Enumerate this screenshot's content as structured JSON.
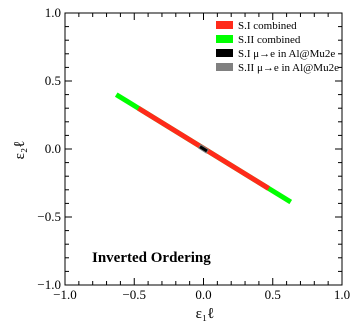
{
  "chart_data": {
    "type": "line",
    "title": "",
    "xlabel": "ε₁ℓ",
    "ylabel": "ε₂ℓ",
    "xlim": [
      -1.0,
      1.0
    ],
    "ylim": [
      -1.0,
      1.0
    ],
    "xticks": [
      "−1.0",
      "−0.5",
      "0.0",
      "0.5",
      "1.0"
    ],
    "yticks": [
      "−1.0",
      "−0.5",
      "0.0",
      "0.5",
      "1.0"
    ],
    "xtick_values": [
      -1.0,
      -0.5,
      0.0,
      0.5,
      1.0
    ],
    "ytick_values": [
      -1.0,
      -0.5,
      0.0,
      0.5,
      1.0
    ],
    "grid": false,
    "legend_position": "top-right",
    "annotation": "Inverted Ordering",
    "series": [
      {
        "name": "S.II combined",
        "color": "#00ff00",
        "x": [
          -0.63,
          0.63
        ],
        "y": [
          0.4,
          -0.39
        ]
      },
      {
        "name": "S.I  combined",
        "color": "#ff2a1a",
        "x": [
          -0.47,
          0.47
        ],
        "y": [
          0.3,
          -0.29
        ]
      },
      {
        "name": "S.II  μ→e in Al@Mu2e",
        "color": "#808080",
        "x": [
          -0.03,
          0.03
        ],
        "y": [
          0.021,
          -0.019
        ]
      },
      {
        "name": "S.I  μ→e in Al@Mu2e",
        "color": "#000000",
        "x": [
          -0.025,
          0.025
        ],
        "y": [
          0.017,
          -0.015
        ]
      }
    ],
    "legend_order": [
      1,
      0,
      3,
      2
    ]
  }
}
